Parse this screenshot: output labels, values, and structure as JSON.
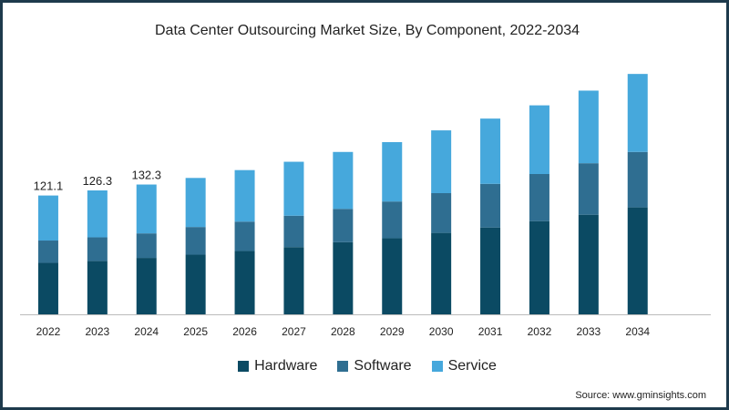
{
  "chart_data": {
    "type": "bar",
    "stacked": true,
    "title": "Data Center Outsourcing Market Size, By Component, 2022-2034",
    "categories": [
      "2022",
      "2023",
      "2024",
      "2025",
      "2026",
      "2027",
      "2028",
      "2029",
      "2030",
      "2031",
      "2032",
      "2033",
      "2034"
    ],
    "series": [
      {
        "name": "Hardware",
        "color": "#0b4a63",
        "values": [
          52.5,
          54.5,
          57.5,
          60.8,
          64.5,
          68.5,
          73.5,
          77.5,
          83.0,
          88.5,
          95.0,
          101.5,
          109.0
        ]
      },
      {
        "name": "Software",
        "color": "#2f6e91",
        "values": [
          22.7,
          24.0,
          25.0,
          28.2,
          30.0,
          32.0,
          34.0,
          37.5,
          40.5,
          44.5,
          48.0,
          52.5,
          56.5
        ]
      },
      {
        "name": "Service",
        "color": "#46a8dc",
        "values": [
          45.9,
          47.8,
          49.8,
          50.0,
          52.5,
          55.0,
          58.0,
          60.5,
          64.0,
          66.5,
          70.0,
          74.0,
          79.5
        ]
      }
    ],
    "totals_labels": [
      {
        "category": "2022",
        "label": "121.1"
      },
      {
        "category": "2023",
        "label": "126.3"
      },
      {
        "category": "2024",
        "label": "132.3"
      }
    ],
    "ylim": [
      0,
      260
    ],
    "xlabel": "",
    "ylabel": "",
    "grid": false,
    "legend_position": "bottom-center"
  },
  "legend": {
    "hardware": "Hardware",
    "software": "Software",
    "service": "Service"
  },
  "source": "Source: www.gminsights.com"
}
